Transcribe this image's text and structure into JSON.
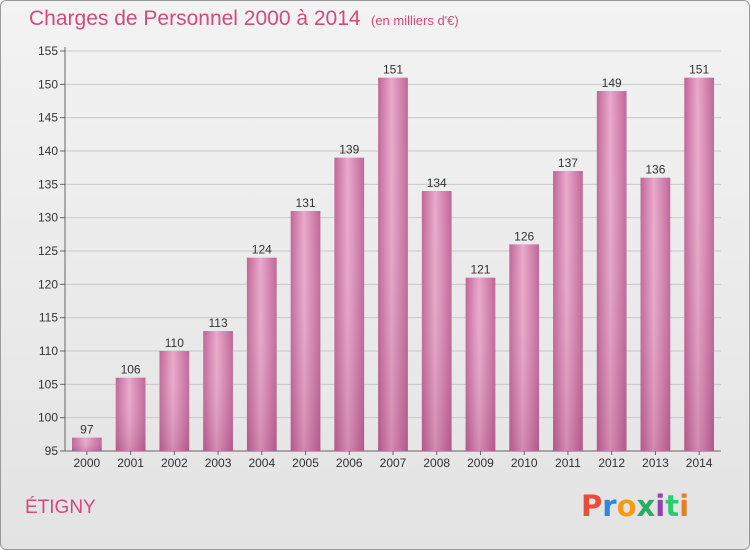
{
  "header": {
    "title": "Charges de Personnel 2000 à 2014",
    "subtitle": "(en milliers d'€)"
  },
  "footer": {
    "commune": "ÉTIGNY",
    "logo_letters": [
      "P",
      "r",
      "o",
      "x",
      "i",
      "t",
      "i"
    ]
  },
  "chart_data": {
    "type": "bar",
    "title": "Charges de Personnel 2000 à 2014",
    "subtitle": "(en milliers d'€)",
    "categories": [
      "2000",
      "2001",
      "2002",
      "2003",
      "2004",
      "2005",
      "2006",
      "2007",
      "2008",
      "2009",
      "2010",
      "2011",
      "2012",
      "2013",
      "2014"
    ],
    "values": [
      97,
      106,
      110,
      113,
      124,
      131,
      139,
      151,
      134,
      121,
      126,
      137,
      149,
      136,
      151
    ],
    "ylim": [
      95,
      155
    ],
    "yticks": [
      95,
      100,
      105,
      110,
      115,
      120,
      125,
      130,
      135,
      140,
      145,
      150,
      155
    ],
    "grid": true,
    "bar_color": "#cf7ba8"
  }
}
